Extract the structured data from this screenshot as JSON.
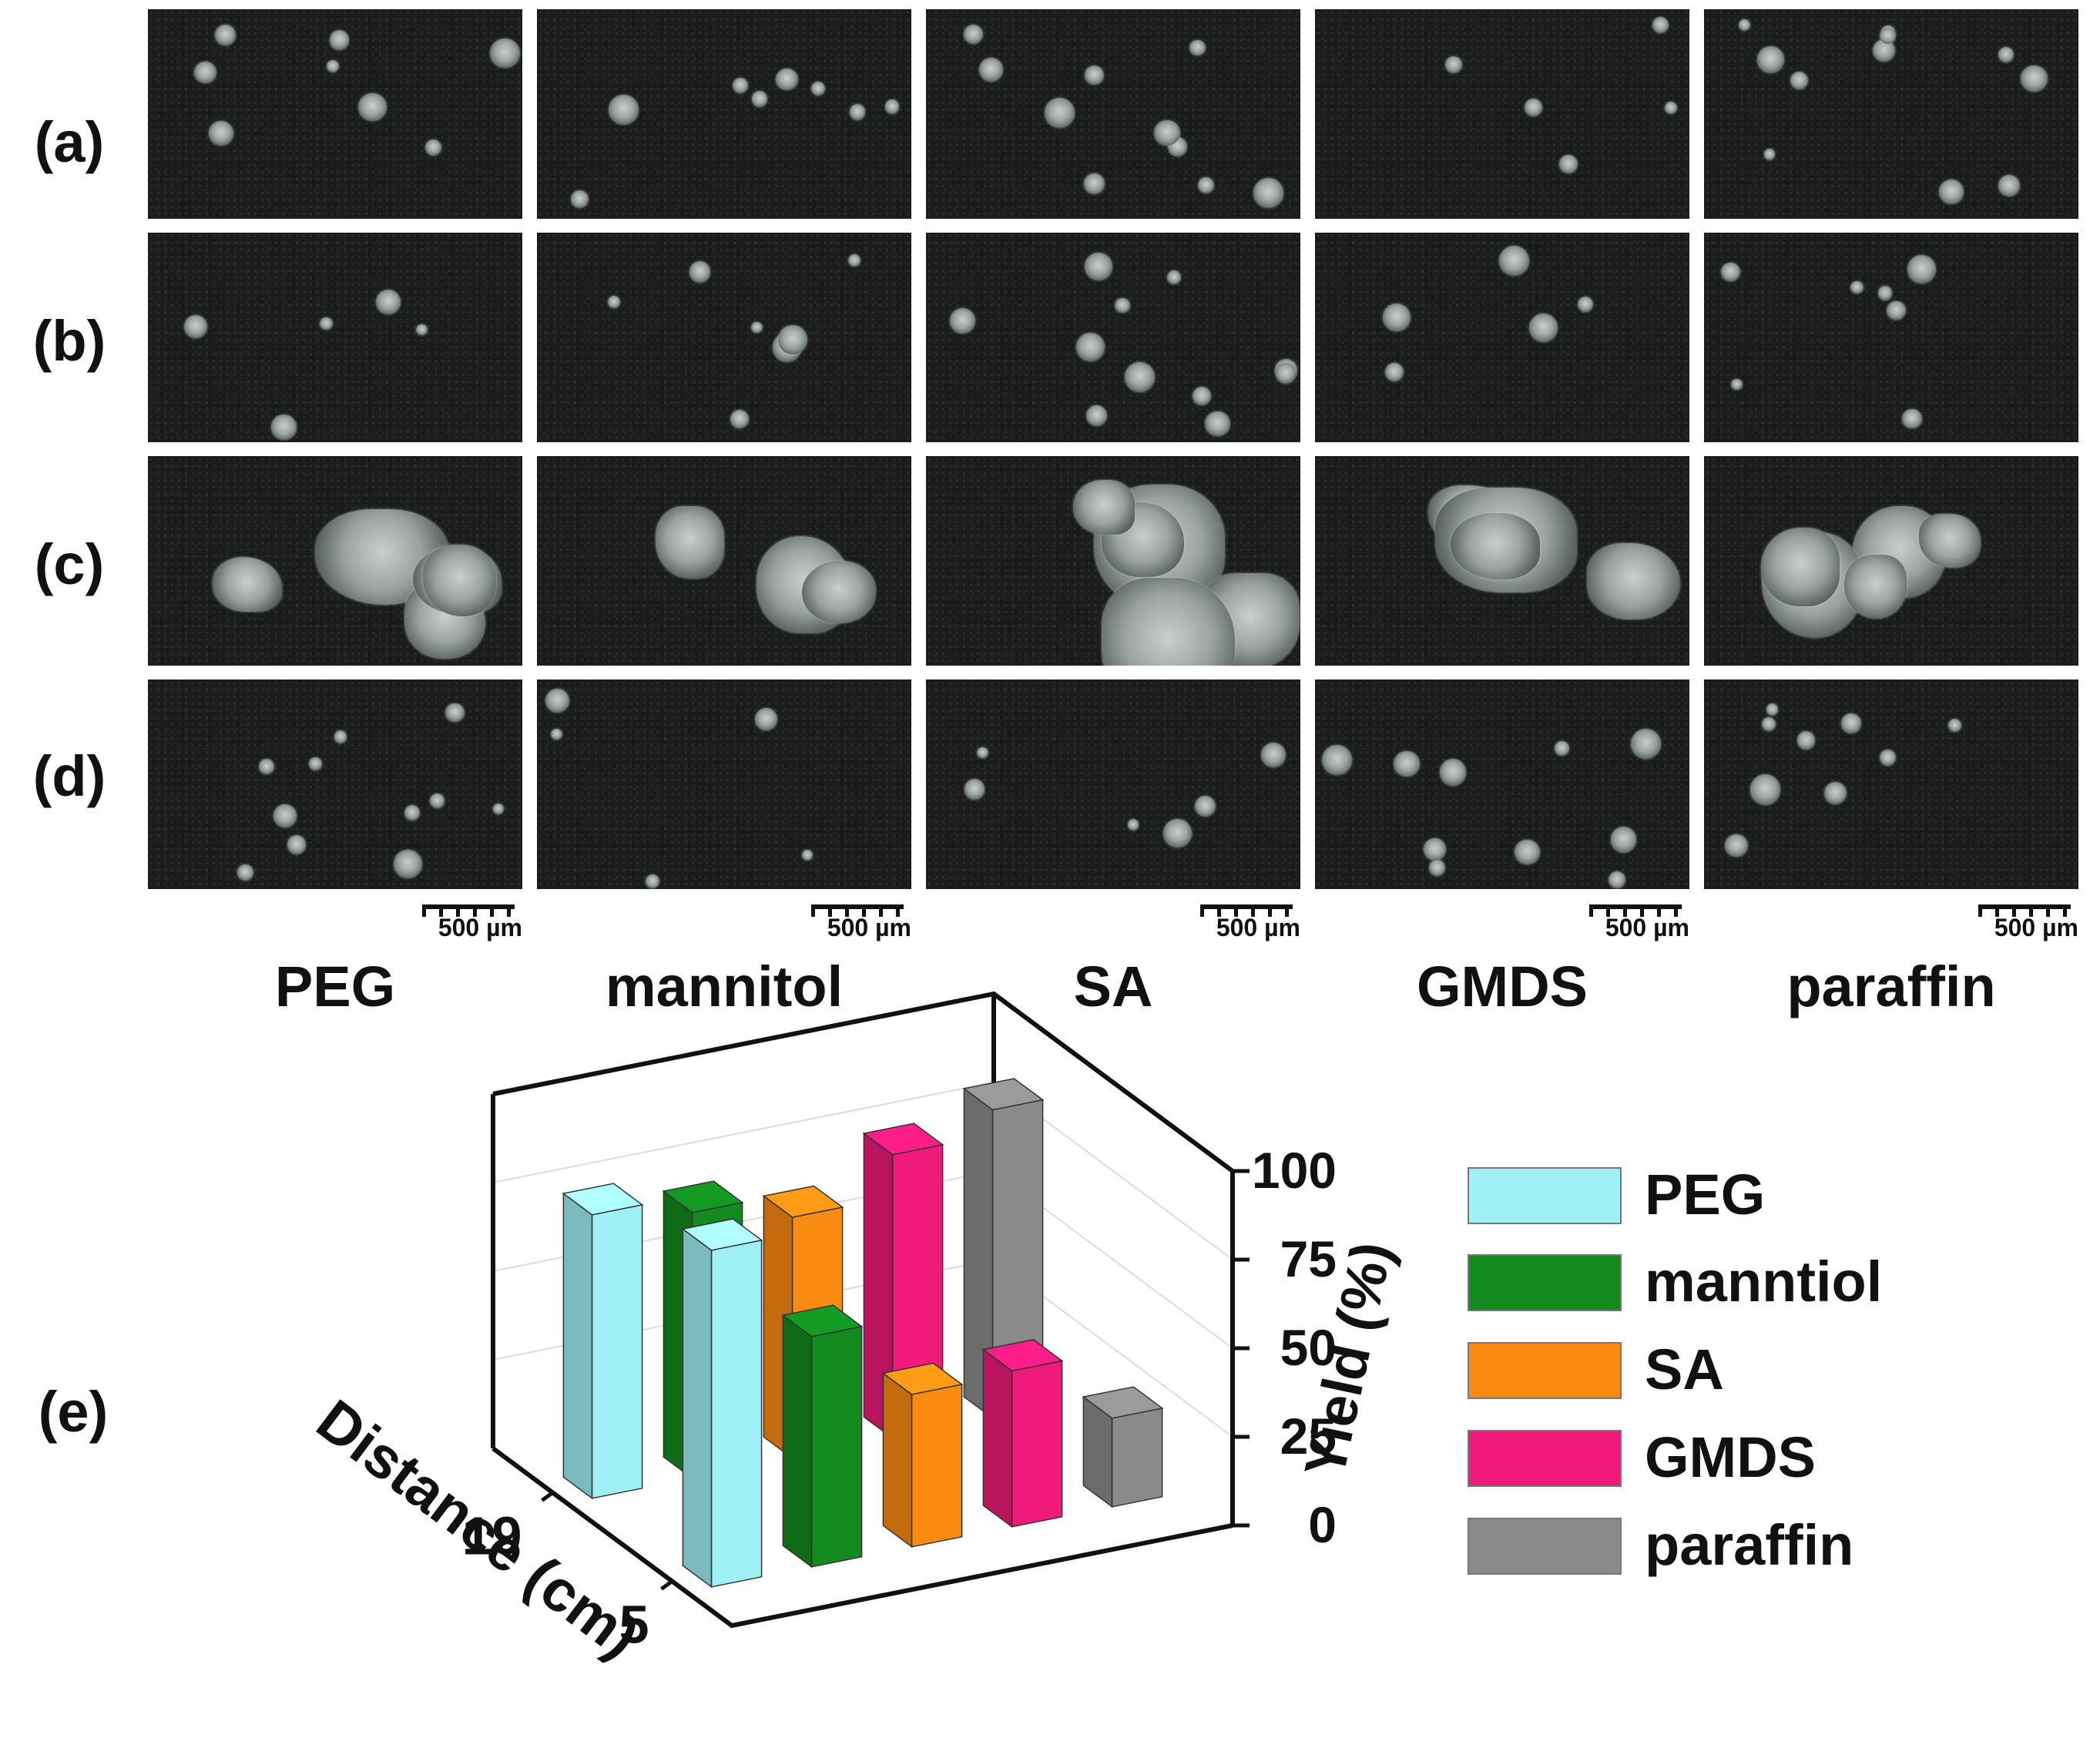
{
  "row_labels": [
    "(a)",
    "(b)",
    "(c)",
    "(d)"
  ],
  "columns": [
    "PEG",
    "mannitol",
    "SA",
    "GMDS",
    "paraffin"
  ],
  "scale_bar_label": "500 µm",
  "panel_e_label": "(e)",
  "chart_data": {
    "type": "bar",
    "subtype": "3d-grouped-bar",
    "x_axis": {
      "label": "Distance (cm)",
      "categories": [
        "19",
        "5"
      ]
    },
    "z_axis": {
      "label": "Yield (%)",
      "ticks": [
        "0",
        "25",
        "50",
        "75",
        "100"
      ],
      "range": [
        0,
        100
      ]
    },
    "series": [
      {
        "name": "PEG",
        "color": "#9ef0f5",
        "values": [
          80,
          95
        ]
      },
      {
        "name": "manntiol",
        "color": "#128a1e",
        "values": [
          75,
          65
        ]
      },
      {
        "name": "SA",
        "color": "#f98a12",
        "values": [
          68,
          43
        ]
      },
      {
        "name": "GMDS",
        "color": "#f01a7a",
        "values": [
          80,
          44
        ]
      },
      {
        "name": "paraffin",
        "color": "#8a8a8a",
        "values": [
          87,
          25
        ]
      }
    ],
    "legend_position": "right",
    "grid": true
  },
  "colors": {
    "panel_background": "#1b1d1c",
    "particle": "#c9cfcc"
  }
}
